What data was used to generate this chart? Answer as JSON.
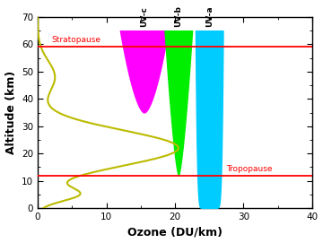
{
  "title": "",
  "xlabel": "Ozone (DU/km)",
  "ylabel": "Altitude (km)",
  "xlim": [
    0,
    40
  ],
  "ylim": [
    0,
    70
  ],
  "xticks": [
    0,
    10,
    20,
    30,
    40
  ],
  "yticks": [
    0,
    10,
    20,
    30,
    40,
    50,
    60,
    70
  ],
  "stratopause_y": 59,
  "tropopause_y": 12,
  "stratopause_label": "Stratopause",
  "tropopause_label": "Tropopause",
  "uvc_color": "#FF00FF",
  "uvb_color": "#00EE00",
  "uva_color": "#00CCFF",
  "uvc_x_center": 15.5,
  "uvb_x_center": 20.5,
  "uva_x_center": 25.0,
  "line_color": "#BBBB00",
  "hline_color": "red",
  "background_color": "#ffffff"
}
